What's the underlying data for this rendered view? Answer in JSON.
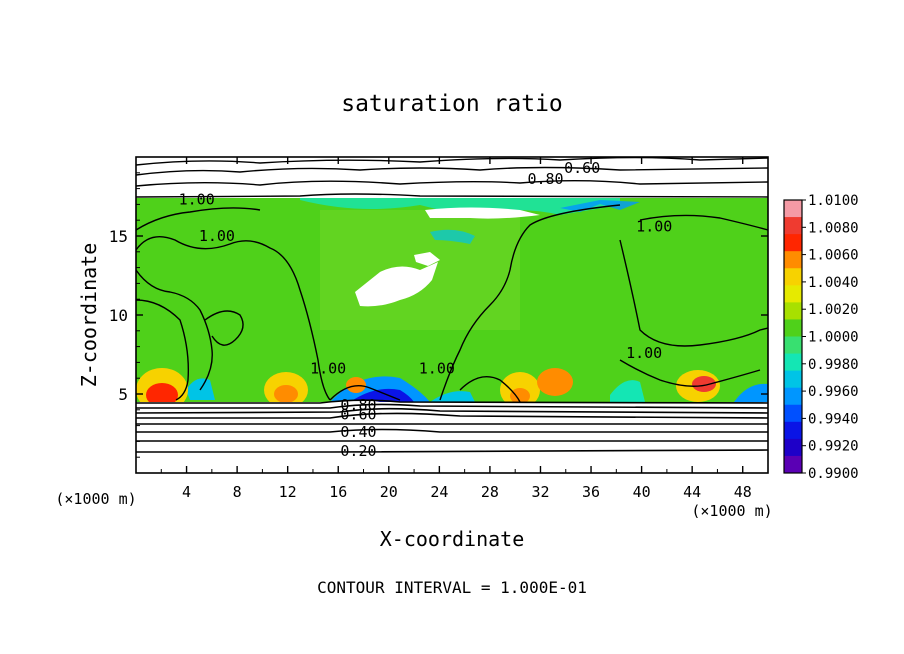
{
  "chart_data": {
    "type": "heatmap",
    "title": "saturation ratio",
    "xlabel": "X-coordinate",
    "ylabel": "Z-coordinate",
    "x_unit": "(×1000 m)",
    "y_unit": "(×1000 m)",
    "xlim": [
      0,
      50
    ],
    "ylim": [
      0,
      20
    ],
    "xticks": [
      "4",
      "8",
      "12",
      "16",
      "20",
      "24",
      "28",
      "32",
      "36",
      "40",
      "44",
      "48"
    ],
    "yticks": [
      "5",
      "10",
      "15"
    ],
    "footer": "CONTOUR INTERVAL = 1.000E-01",
    "colorbar": {
      "labels": [
        "1.0100",
        "1.0080",
        "1.0060",
        "1.0040",
        "1.0020",
        "1.0000",
        "0.9980",
        "0.9960",
        "0.9940",
        "0.9920",
        "0.9900"
      ],
      "colors": [
        "#f59aa5",
        "#ef3b30",
        "#ff2600",
        "#ff8c00",
        "#f7d200",
        "#e6ea00",
        "#a8e000",
        "#4fd11a",
        "#38e070",
        "#14e6b4",
        "#00c4e6",
        "#0096ff",
        "#0050ff",
        "#0a14e6",
        "#1e00c8",
        "#5a00b4"
      ]
    },
    "contour_labels": [
      {
        "text": "0.60",
        "x": 35.3,
        "y": 19.3
      },
      {
        "text": "0.80",
        "x": 32.4,
        "y": 18.6
      },
      {
        "text": "1.00",
        "x": 4.8,
        "y": 17.3
      },
      {
        "text": "1.00",
        "x": 6.4,
        "y": 15.0
      },
      {
        "text": "1.00",
        "x": 41.0,
        "y": 15.6
      },
      {
        "text": "1.00",
        "x": 15.2,
        "y": 6.6
      },
      {
        "text": "1.00",
        "x": 23.8,
        "y": 6.6
      },
      {
        "text": "1.00",
        "x": 40.2,
        "y": 7.6
      },
      {
        "text": "0.80",
        "x": 17.6,
        "y": 4.3
      },
      {
        "text": "0.60",
        "x": 17.6,
        "y": 3.7
      },
      {
        "text": "0.40",
        "x": 17.6,
        "y": 2.6
      },
      {
        "text": "0.20",
        "x": 17.6,
        "y": 1.4
      }
    ]
  }
}
